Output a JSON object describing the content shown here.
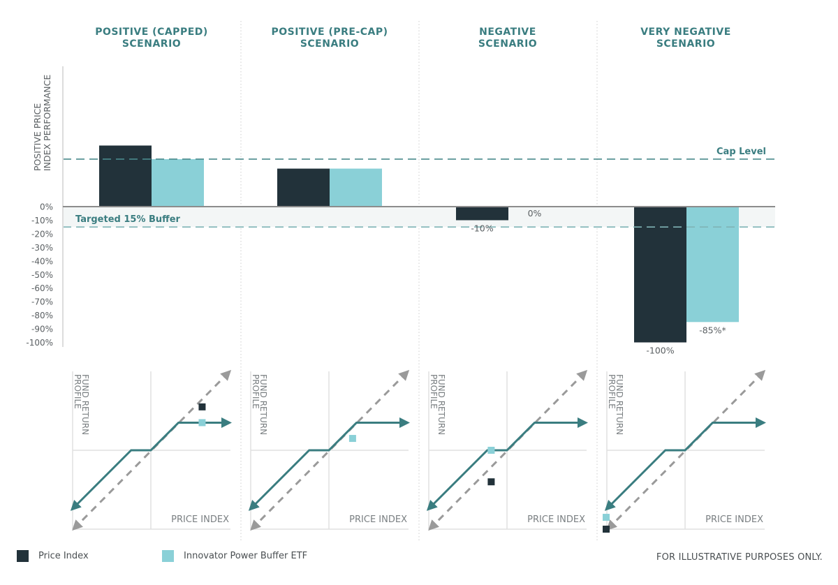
{
  "colors": {
    "price_index": "#22323a",
    "etf": "#8ad0d7",
    "teal": "#3a7d80",
    "dash_gray": "#9a9a9a",
    "axis": "#8c8c8c",
    "buffer_zone": "#f3f6f6"
  },
  "scenarios": [
    {
      "title_line1": "POSITIVE (CAPPED)",
      "title_line2": "SCENARIO"
    },
    {
      "title_line1": "POSITIVE (PRE-CAP)",
      "title_line2": "SCENARIO"
    },
    {
      "title_line1": "NEGATIVE",
      "title_line2": "SCENARIO"
    },
    {
      "title_line1": "VERY NEGATIVE",
      "title_line2": "SCENARIO"
    }
  ],
  "chart_data": {
    "type": "bar",
    "title": "",
    "xlabel": "",
    "ylabel_line1": "POSITIVE PRICE",
    "ylabel_line2": "INDEX PERFORMANCE",
    "ylim": [
      -100,
      100
    ],
    "y_ticks": [
      "0%",
      "-10%",
      "-20%",
      "-30%",
      "-40%",
      "-50%",
      "-60%",
      "-70%",
      "-80%",
      "-90%",
      "-100%"
    ],
    "y_tick_values": [
      0,
      -10,
      -20,
      -30,
      -40,
      -50,
      -60,
      -70,
      -80,
      -90,
      -100
    ],
    "categories": [
      "POSITIVE (CAPPED) SCENARIO",
      "POSITIVE (PRE-CAP) SCENARIO",
      "NEGATIVE SCENARIO",
      "VERY NEGATIVE SCENARIO"
    ],
    "series": [
      {
        "name": "Price Index",
        "values": [
          45,
          28,
          -10,
          -100
        ],
        "labels": [
          "",
          "",
          "-10%",
          "-100%"
        ]
      },
      {
        "name": "Innovator Power Buffer ETF",
        "values": [
          35,
          28,
          0,
          -85
        ],
        "labels": [
          "",
          "",
          "0%",
          "-85%*"
        ]
      }
    ],
    "reference_lines": [
      {
        "name": "Cap Level",
        "label": "Cap Level",
        "value": 35
      },
      {
        "name": "Buffer",
        "label": "Targeted 15% Buffer",
        "value": -15
      }
    ],
    "grid": false,
    "legend": "bottom-left"
  },
  "profile": {
    "y_label_line1": "FUND RETURN",
    "y_label_line2": "PROFILE",
    "x_label": "PRICE INDEX",
    "markers": [
      {
        "price_index": [
          0.65,
          0.55
        ],
        "etf": [
          0.65,
          0.35
        ]
      },
      {
        "price_index": null,
        "etf": [
          0.3,
          0.15
        ]
      },
      {
        "price_index": [
          -0.2,
          -0.4
        ],
        "etf": [
          -0.2,
          0.0
        ]
      },
      {
        "price_index": [
          -1.0,
          -1.0
        ],
        "etf": [
          -1.0,
          -0.85
        ]
      }
    ]
  },
  "legend": {
    "price_index": "Price Index",
    "etf": "Innovator Power Buffer ETF"
  },
  "footnote": "FOR ILLUSTRATIVE PURPOSES ONLY."
}
